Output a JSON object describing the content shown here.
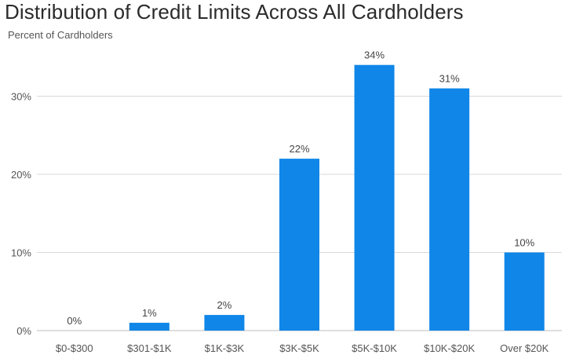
{
  "chart_data": {
    "type": "bar",
    "title": "Distribution of Credit Limits Across All Cardholders",
    "ylabel": "Percent of Cardholders",
    "xlabel": "",
    "categories": [
      "$0-$300",
      "$301-$1K",
      "$1K-$3K",
      "$3K-$5K",
      "$5K-$10K",
      "$10K-$20K",
      "Over $20K"
    ],
    "values": [
      0,
      1,
      2,
      22,
      34,
      31,
      10
    ],
    "data_labels": [
      "0%",
      "1%",
      "2%",
      "22%",
      "34%",
      "31%",
      "10%"
    ],
    "yticks": [
      "0%",
      "10%",
      "20%",
      "30%"
    ],
    "ytick_values": [
      0,
      10,
      20,
      30
    ],
    "ylim": [
      0,
      34
    ],
    "grid": true,
    "bar_color": "#0f86e8",
    "grid_color": "#d9d9d9"
  }
}
